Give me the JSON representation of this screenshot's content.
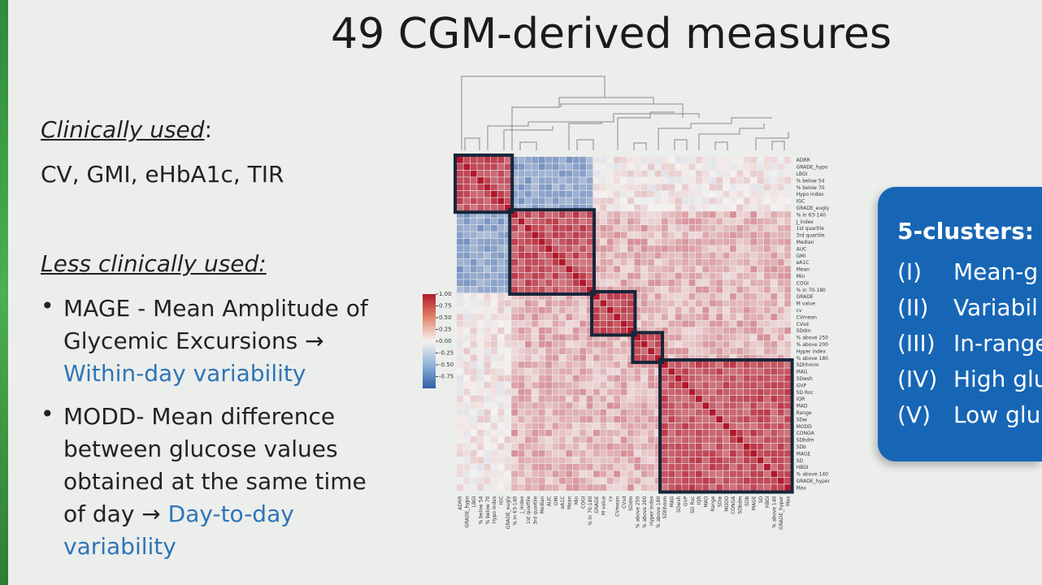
{
  "title": "49 CGM-derived measures",
  "left": {
    "clinically_used_heading": "Clinically used",
    "colon": ":",
    "clinically_used": "CV, GMI, eHbA1c, TIR",
    "less_used_heading": "Less clinically used:",
    "bullets": [
      {
        "text": "MAGE - Mean Amplitude of Glycemic Excursions →",
        "highlight": "Within-day variability"
      },
      {
        "text": "MODD- Mean difference between glucose values obtained at the same time of day →",
        "highlight": "Day-to-day variability"
      }
    ]
  },
  "heatmap": {
    "measures": [
      "ADRR",
      "GRADE_hypo",
      "LBGI",
      "% below 54",
      "% below 70",
      "Hypo index",
      "IGC",
      "GRADE_eugly",
      "% in 63-140",
      "J_index",
      "1st quartile",
      "3rd quartile",
      "Median",
      "AUC",
      "GMI",
      "eA1C",
      "Mean",
      "Min",
      "COGI",
      "% in 70-180",
      "GRADE",
      "M value",
      "cv",
      "CVmean",
      "CVsd",
      "SDdm",
      "% above 250",
      "% above 200",
      "Hyper index",
      "% above 180",
      "SDhhmm",
      "MAG",
      "SDwsh",
      "GVP",
      "SD Roc",
      "IQR",
      "MAD",
      "Range",
      "SDw",
      "MODD",
      "CONGA",
      "SDbdm",
      "SDb",
      "MAGE",
      "SD",
      "HBGI",
      "% above 140",
      "GRADE_hyper",
      "Max"
    ],
    "clim": [
      -1,
      1
    ],
    "colorbar_ticks": [
      {
        "value": 1,
        "label": "1.00"
      },
      0.75,
      {
        "value": 0.5,
        "label": "0.50"
      },
      0.25,
      {
        "value": 0,
        "label": "0.00"
      },
      -0.25,
      {
        "value": -0.5,
        "label": "-0.50"
      },
      -0.75
    ]
  },
  "clusters_panel": {
    "heading": "5-clusters:",
    "items": [
      {
        "numeral": "(I)",
        "label": "Mean-g"
      },
      {
        "numeral": "(II)",
        "label": "Variabil"
      },
      {
        "numeral": "(III)",
        "label": "In-range"
      },
      {
        "numeral": "(IV)",
        "label": "High glu"
      },
      {
        "numeral": "(V)",
        "label": "Low glu"
      }
    ]
  }
}
